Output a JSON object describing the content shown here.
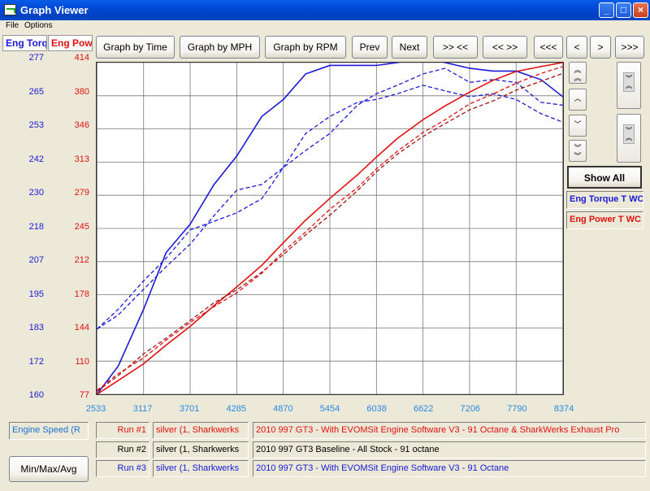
{
  "window": {
    "title": "Graph Viewer",
    "minimize_glyph": "_",
    "maximize_glyph": "□",
    "close_glyph": "×"
  },
  "menu": {
    "items": [
      "File",
      "Options"
    ]
  },
  "axes": {
    "left_tab_label": "Eng Torq",
    "right_tab_label": "Eng Power",
    "torque_ticks": [
      "277",
      "265",
      "253",
      "242",
      "230",
      "218",
      "207",
      "195",
      "183",
      "172",
      "160"
    ],
    "power_ticks": [
      "414",
      "380",
      "346",
      "313",
      "279",
      "245",
      "212",
      "178",
      "144",
      "110",
      "77"
    ],
    "x_ticks": [
      "2533",
      "3117",
      "3701",
      "4285",
      "4870",
      "5454",
      "6038",
      "6622",
      "7206",
      "7790",
      "8374"
    ],
    "x_label": "Engine Speed (R"
  },
  "toolbar": {
    "graph_by_time": "Graph by Time",
    "graph_by_mph": "Graph by MPH",
    "graph_by_rpm": "Graph by RPM",
    "prev": "Prev",
    "next": "Next",
    "zoom_in": ">> <<",
    "zoom_out": "<< >>",
    "scroll_far_left": "<<<",
    "scroll_left": "<",
    "scroll_right": ">",
    "scroll_far_right": ">>>"
  },
  "side": {
    "show_all": "Show All",
    "legend_torque": "Eng Torque T WC",
    "legend_power": "Eng Power T WC",
    "icons": [
      "chevron-double-up-icon",
      "chevron-up-icon",
      "chevron-down-icon",
      "chevron-double-down-icon",
      "vertical-zoom-out-icon",
      "vertical-zoom-in-icon"
    ]
  },
  "runs": [
    {
      "label": "Run #1",
      "car": "silver (1, Sharkwerks",
      "description": "2010 997 GT3 - With EVOMSit Engine Software V3 - 91 Octane & SharkWerks Exhaust Pro",
      "color": "#e01010"
    },
    {
      "label": "Run #2",
      "car": "silver (1, Sharkwerks",
      "description": "2010 997 GT3 Baseline - All Stock - 91 octane",
      "color": "#000000"
    },
    {
      "label": "Run #3",
      "car": "silver (1, Sharkwerks",
      "description": "2010 997 GT3 - With EVOMSit Engine Software V3 - 91 Octane",
      "color": "#1030d0"
    }
  ],
  "minmax_button": "Min/Max/Avg",
  "colors": {
    "torque": "#1a1ad6",
    "power": "#e01010",
    "tick_blue": "#2a8ae0"
  },
  "chart_data": {
    "type": "line",
    "x_range": [
      2533,
      8374
    ],
    "torque_range": [
      160,
      277
    ],
    "power_range": [
      77,
      414
    ],
    "grid": true,
    "series": [
      {
        "name": "Run #1",
        "quantity": "torque",
        "style": "solid",
        "color": "#1a1ad6",
        "x": [
          2533,
          2800,
          3117,
          3400,
          3701,
          4000,
          4285,
          4600,
          4870,
          5150,
          5454,
          5800,
          6038,
          6300,
          6622,
          6900,
          7206,
          7500,
          7790,
          8100,
          8374
        ],
        "y": [
          160,
          170,
          190,
          210,
          220,
          234,
          244,
          258,
          264,
          273,
          276,
          276,
          276,
          277,
          279,
          277,
          275,
          274,
          274,
          271,
          265
        ]
      },
      {
        "name": "Run #2",
        "quantity": "torque",
        "style": "dashed",
        "color": "#1a1ad6",
        "x": [
          2533,
          2800,
          3117,
          3400,
          3701,
          4000,
          4285,
          4600,
          4870,
          5150,
          5454,
          5800,
          6038,
          6300,
          6622,
          6900,
          7206,
          7500,
          7790,
          8100,
          8374
        ],
        "y": [
          183,
          188,
          197,
          205,
          213,
          223,
          232,
          234,
          240,
          246,
          252,
          262,
          266,
          269,
          273,
          275,
          270,
          271,
          270,
          263,
          262
        ]
      },
      {
        "name": "Run #3",
        "quantity": "torque",
        "style": "dashed",
        "color": "#1a1ad6",
        "x": [
          2533,
          2800,
          3117,
          3400,
          3701,
          4000,
          4285,
          4600,
          4870,
          5150,
          5454,
          5800,
          6038,
          6300,
          6622,
          6900,
          7206,
          7500,
          7790,
          8100,
          8374
        ],
        "y": [
          183,
          190,
          200,
          208,
          218,
          221,
          224,
          229,
          240,
          252,
          258,
          263,
          264,
          266,
          269,
          267,
          265,
          266,
          264,
          259,
          256
        ]
      },
      {
        "name": "Run #1",
        "quantity": "power",
        "style": "solid",
        "color": "#e01010",
        "x": [
          2533,
          2800,
          3117,
          3400,
          3701,
          4000,
          4285,
          4600,
          4870,
          5150,
          5454,
          5800,
          6038,
          6300,
          6622,
          6900,
          7206,
          7500,
          7790,
          8100,
          8374
        ],
        "y": [
          77,
          91,
          108,
          127,
          146,
          167,
          186,
          208,
          231,
          254,
          276,
          300,
          318,
          337,
          356,
          370,
          384,
          396,
          405,
          410,
          414
        ]
      },
      {
        "name": "Run #2",
        "quantity": "power",
        "style": "dashed",
        "color": "#a01010",
        "x": [
          2533,
          2800,
          3117,
          3400,
          3701,
          4000,
          4285,
          4600,
          4870,
          5150,
          5454,
          5800,
          6038,
          6300,
          6622,
          6900,
          7206,
          7500,
          7790,
          8100,
          8374
        ],
        "y": [
          80,
          96,
          118,
          134,
          152,
          170,
          183,
          201,
          219,
          239,
          259,
          284,
          303,
          321,
          339,
          352,
          366,
          375,
          386,
          395,
          403
        ]
      },
      {
        "name": "Run #3",
        "quantity": "power",
        "style": "dashed",
        "color": "#e01010",
        "x": [
          2533,
          2800,
          3117,
          3400,
          3701,
          4000,
          4285,
          4600,
          4870,
          5150,
          5454,
          5800,
          6038,
          6300,
          6622,
          6900,
          7206,
          7500,
          7790,
          8100,
          8374
        ],
        "y": [
          81,
          98,
          114,
          132,
          150,
          166,
          180,
          200,
          222,
          242,
          265,
          287,
          306,
          324,
          343,
          356,
          372,
          382,
          393,
          403,
          410
        ]
      }
    ]
  }
}
